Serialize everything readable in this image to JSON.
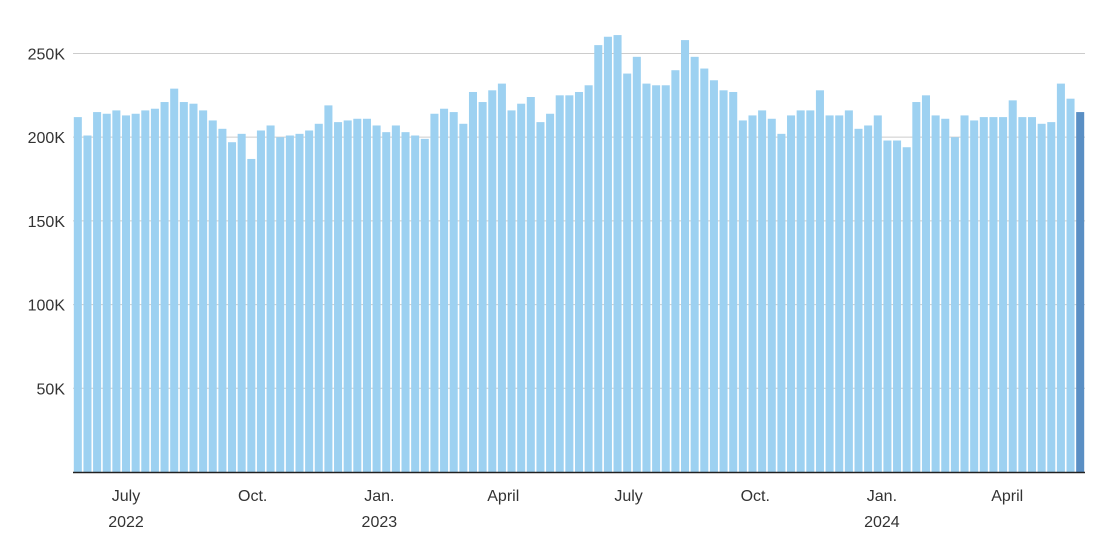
{
  "chart_data": {
    "type": "bar",
    "x_start": "2022-05-27",
    "x_interval": "week",
    "values": [
      212000,
      201000,
      215000,
      214000,
      216000,
      213000,
      214000,
      216000,
      217000,
      221000,
      229000,
      221000,
      220000,
      216000,
      210000,
      205000,
      197000,
      202000,
      187000,
      204000,
      207000,
      200000,
      201000,
      202000,
      204000,
      208000,
      219000,
      209000,
      210000,
      211000,
      211000,
      207000,
      203000,
      207000,
      203000,
      201000,
      199000,
      214000,
      217000,
      215000,
      208000,
      227000,
      221000,
      228000,
      232000,
      216000,
      220000,
      224000,
      209000,
      214000,
      225000,
      225000,
      227000,
      231000,
      255000,
      260000,
      261000,
      238000,
      248000,
      232000,
      231000,
      231000,
      240000,
      258000,
      248000,
      241000,
      234000,
      228000,
      227000,
      210000,
      213000,
      216000,
      211000,
      202000,
      213000,
      216000,
      216000,
      228000,
      213000,
      213000,
      216000,
      205000,
      207000,
      213000,
      198000,
      198000,
      194000,
      221000,
      225000,
      213000,
      211000,
      200000,
      213000,
      210000,
      212000,
      212000,
      212000,
      222000,
      212000,
      212000,
      208000,
      209000,
      232000,
      223000,
      215000
    ],
    "highlight": "last",
    "colors": {
      "bar": "#9dd1f1",
      "highlight": "#5a8fc4",
      "grid": "#cccccc",
      "axis": "#222222",
      "text": "#333333"
    },
    "yticks": [
      {
        "value": 50000,
        "label": "50K"
      },
      {
        "value": 100000,
        "label": "100K"
      },
      {
        "value": 150000,
        "label": "150K"
      },
      {
        "value": 200000,
        "label": "200K"
      },
      {
        "value": 250000,
        "label": "250K"
      }
    ],
    "ylim": [
      0,
      270000
    ],
    "grid": true,
    "xticks": [
      {
        "date": "2022-07-01",
        "label": "July",
        "sublabel": "2022"
      },
      {
        "date": "2022-10-01",
        "label": "Oct.",
        "sublabel": ""
      },
      {
        "date": "2023-01-01",
        "label": "Jan.",
        "sublabel": "2023"
      },
      {
        "date": "2023-04-01",
        "label": "April",
        "sublabel": ""
      },
      {
        "date": "2023-07-01",
        "label": "July",
        "sublabel": ""
      },
      {
        "date": "2023-10-01",
        "label": "Oct.",
        "sublabel": ""
      },
      {
        "date": "2024-01-01",
        "label": "Jan.",
        "sublabel": "2024"
      },
      {
        "date": "2024-04-01",
        "label": "April",
        "sublabel": ""
      }
    ]
  }
}
